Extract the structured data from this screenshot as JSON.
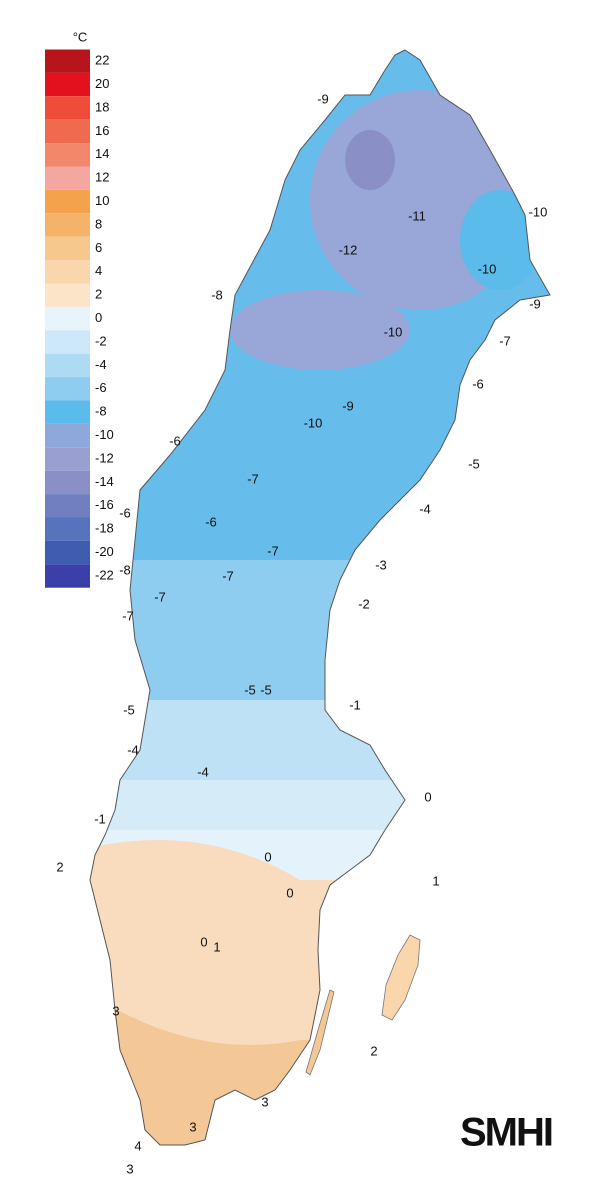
{
  "legend": {
    "unit": "°C",
    "items": [
      {
        "value": 22,
        "color": "#b8141b"
      },
      {
        "value": 20,
        "color": "#e3101d"
      },
      {
        "value": 18,
        "color": "#ef4c3a"
      },
      {
        "value": 16,
        "color": "#f06a50"
      },
      {
        "value": 14,
        "color": "#f2876b"
      },
      {
        "value": 12,
        "color": "#f4a7a0"
      },
      {
        "value": 10,
        "color": "#f4a24c"
      },
      {
        "value": 8,
        "color": "#f5b36a"
      },
      {
        "value": 6,
        "color": "#f7c88e"
      },
      {
        "value": 4,
        "color": "#f9d6ac"
      },
      {
        "value": 2,
        "color": "#fbe4c8"
      },
      {
        "value": 0,
        "color": "#e7f4fc"
      },
      {
        "value": -2,
        "color": "#cde8f8"
      },
      {
        "value": -4,
        "color": "#aedbf4"
      },
      {
        "value": -6,
        "color": "#8fcdf0"
      },
      {
        "value": -8,
        "color": "#5bbbea"
      },
      {
        "value": -10,
        "color": "#8fa8dc"
      },
      {
        "value": -12,
        "color": "#9a9ed0"
      },
      {
        "value": -14,
        "color": "#8a8fc6"
      },
      {
        "value": -16,
        "color": "#6f7fc0"
      },
      {
        "value": -18,
        "color": "#5773bc"
      },
      {
        "value": -20,
        "color": "#3f5db0"
      },
      {
        "value": -22,
        "color": "#3b3fa8"
      }
    ]
  },
  "contour_labels": [
    -9,
    -10,
    -11,
    -12,
    -10,
    -8,
    -9,
    -10,
    -7,
    -6,
    -9,
    -10,
    -6,
    -5,
    -7,
    -4,
    -6,
    -6,
    -7,
    -3,
    -8,
    -7,
    -7,
    -2,
    -7,
    -5,
    -5,
    -1,
    -5,
    -4,
    -4,
    0,
    -1,
    0,
    2,
    1,
    0,
    0,
    1,
    3,
    2,
    3,
    3,
    4,
    3
  ],
  "logo": "SMHI"
}
